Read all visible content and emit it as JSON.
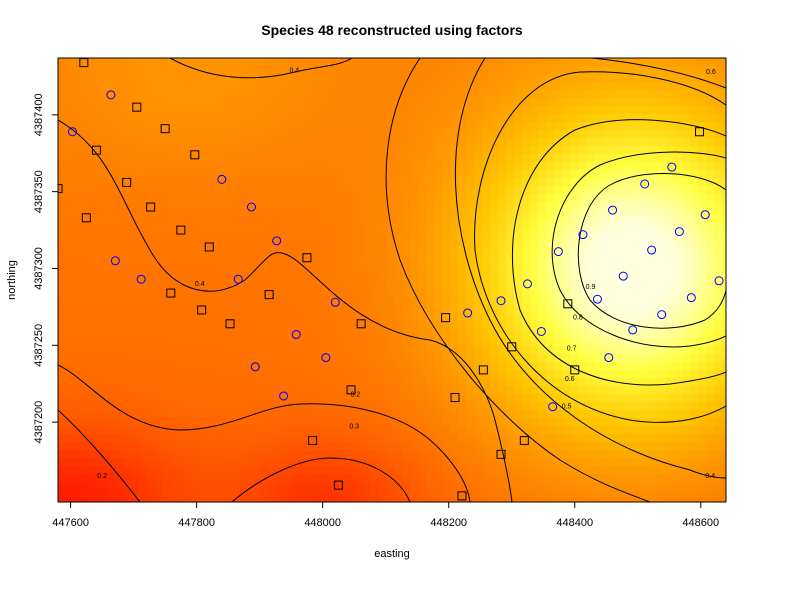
{
  "chart_data": {
    "type": "heatmap",
    "title": "Species 48 reconstructed using factors",
    "xlabel": "easting",
    "ylabel": "northing",
    "xlim": [
      447580,
      448640
    ],
    "ylim": [
      4387148,
      4387437
    ],
    "x_ticks": [
      447600,
      447800,
      448000,
      448200,
      448400,
      448600
    ],
    "x_tick_labels": [
      "447600",
      "447800",
      "448000",
      "448200",
      "448400",
      "448600"
    ],
    "y_ticks": [
      4387200,
      4387250,
      4387300,
      4387350,
      4387400
    ],
    "y_tick_labels": [
      "4387200",
      "4387250",
      "4387300",
      "4387350",
      "4387400"
    ],
    "color_scale": [
      "#ff0000",
      "#ff4a00",
      "#ff8c00",
      "#ffc800",
      "#ffff40",
      "#ffffe0"
    ],
    "contour_levels": [
      0.1,
      0.2,
      0.3,
      0.4,
      0.5,
      0.6,
      0.7,
      0.8,
      0.9
    ],
    "contour_labels": [
      {
        "text": "0.4",
        "x": 447805,
        "y": 4387290
      },
      {
        "text": "0.4",
        "x": 447955,
        "y": 4387429
      },
      {
        "text": "0.3",
        "x": 448050,
        "y": 4387197
      },
      {
        "text": "0.2",
        "x": 447650,
        "y": 4387165
      },
      {
        "text": "0.2",
        "x": 448052,
        "y": 4387218
      },
      {
        "text": "0.5",
        "x": 448387,
        "y": 4387210
      },
      {
        "text": "0.6",
        "x": 448392,
        "y": 4387228
      },
      {
        "text": "0.7",
        "x": 448395,
        "y": 4387248
      },
      {
        "text": "0.8",
        "x": 448405,
        "y": 4387268
      },
      {
        "text": "0.9",
        "x": 448425,
        "y": 4387288
      },
      {
        "text": "0.6",
        "x": 448616,
        "y": 4387428
      },
      {
        "text": "0.4",
        "x": 448615,
        "y": 4387165
      }
    ],
    "series": [
      {
        "marker": "square",
        "color": "#000000",
        "points": [
          [
            447621,
            4387434
          ],
          [
            447705,
            4387405
          ],
          [
            447750,
            4387391
          ],
          [
            447641,
            4387377
          ],
          [
            447797,
            4387374
          ],
          [
            447689,
            4387356
          ],
          [
            447580,
            4387352
          ],
          [
            447727,
            4387340
          ],
          [
            447775,
            4387325
          ],
          [
            447625,
            4387333
          ],
          [
            447820,
            4387314
          ],
          [
            447975,
            4387307
          ],
          [
            447759,
            4387284
          ],
          [
            447915,
            4387283
          ],
          [
            447808,
            4387273
          ],
          [
            447853,
            4387264
          ],
          [
            448061,
            4387264
          ],
          [
            448195,
            4387268
          ],
          [
            448300,
            4387249
          ],
          [
            448389,
            4387277
          ],
          [
            448255,
            4387234
          ],
          [
            448045,
            4387221
          ],
          [
            448400,
            4387234
          ],
          [
            448210,
            4387216
          ],
          [
            447984,
            4387188
          ],
          [
            448283,
            4387179
          ],
          [
            448320,
            4387188
          ],
          [
            448025,
            4387159
          ],
          [
            448221,
            4387152
          ],
          [
            448598,
            4387389
          ]
        ]
      },
      {
        "marker": "circle",
        "color": "#0000ff",
        "points": [
          [
            447664,
            4387413
          ],
          [
            447603,
            4387389
          ],
          [
            447840,
            4387358
          ],
          [
            447887,
            4387340
          ],
          [
            447927,
            4387318
          ],
          [
            447671,
            4387305
          ],
          [
            447712,
            4387293
          ],
          [
            447866,
            4387293
          ],
          [
            448020,
            4387278
          ],
          [
            447958,
            4387257
          ],
          [
            448005,
            4387242
          ],
          [
            447893,
            4387236
          ],
          [
            447938,
            4387217
          ],
          [
            448365,
            4387210
          ],
          [
            448454,
            4387242
          ],
          [
            448347,
            4387259
          ],
          [
            448230,
            4387271
          ],
          [
            448283,
            4387279
          ],
          [
            448325,
            4387290
          ],
          [
            448374,
            4387311
          ],
          [
            448413,
            4387322
          ],
          [
            448460,
            4387338
          ],
          [
            448511,
            4387355
          ],
          [
            448554,
            4387366
          ],
          [
            448566,
            4387324
          ],
          [
            448522,
            4387312
          ],
          [
            448477,
            4387295
          ],
          [
            448436,
            4387280
          ],
          [
            448492,
            4387260
          ],
          [
            448538,
            4387270
          ],
          [
            448585,
            4387281
          ],
          [
            448629,
            4387292
          ],
          [
            448607,
            4387335
          ]
        ]
      }
    ],
    "grid": false
  }
}
